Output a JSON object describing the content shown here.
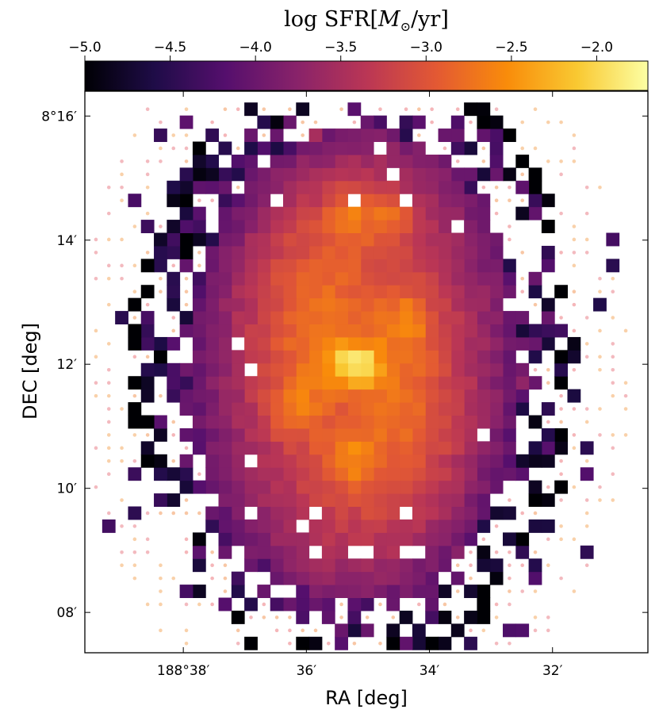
{
  "chart_data": {
    "type": "heatmap",
    "title_parts": {
      "prefix": "log SFR[",
      "symbol": "M",
      "sub": "⊙",
      "suffix": "/yr]"
    },
    "colorbar": {
      "range": [
        -5.0,
        -1.7
      ],
      "tick_values": [
        -5.0,
        -4.5,
        -4.0,
        -3.5,
        -3.0,
        -2.5,
        -2.0
      ],
      "tick_labels": [
        "−5.0",
        "−4.5",
        "−4.0",
        "−3.5",
        "−3.0",
        "−2.5",
        "−2.0"
      ],
      "colormap": "inferno",
      "stops": [
        "#000004",
        "#1f0c48",
        "#550f6d",
        "#88226a",
        "#ba3655",
        "#e35933",
        "#f98c0a",
        "#f9c932",
        "#fcffa4"
      ]
    },
    "xlabel": "RA [deg]",
    "ylabel": "DEC [deg]",
    "x_ticks": [
      {
        "label": "188°38′",
        "value": 38
      },
      {
        "label": "36′",
        "value": 36
      },
      {
        "label": "34′",
        "value": 34
      },
      {
        "label": "32′",
        "value": 32
      }
    ],
    "y_ticks": [
      {
        "label": "8°16′",
        "value": 16
      },
      {
        "label": "14′",
        "value": 14
      },
      {
        "label": "12′",
        "value": 12
      },
      {
        "label": "10′",
        "value": 10
      },
      {
        "label": "08′",
        "value": 8
      }
    ],
    "xlim_arcmin": [
      39.6,
      30.45
    ],
    "ylim_arcmin": [
      7.35,
      16.4
    ],
    "x_inverted": true,
    "galaxy": {
      "center_arcmin": [
        35.2,
        12.0
      ],
      "peak_log_sfr": -1.7,
      "bright_knots_arcmin": [
        [
          34.35,
          12.7
        ],
        [
          35.3,
          10.45
        ],
        [
          35.25,
          14.45
        ],
        [
          34.6,
          14.4
        ],
        [
          36.2,
          11.3
        ]
      ]
    },
    "pixel_size_arcmin": 0.21
  }
}
